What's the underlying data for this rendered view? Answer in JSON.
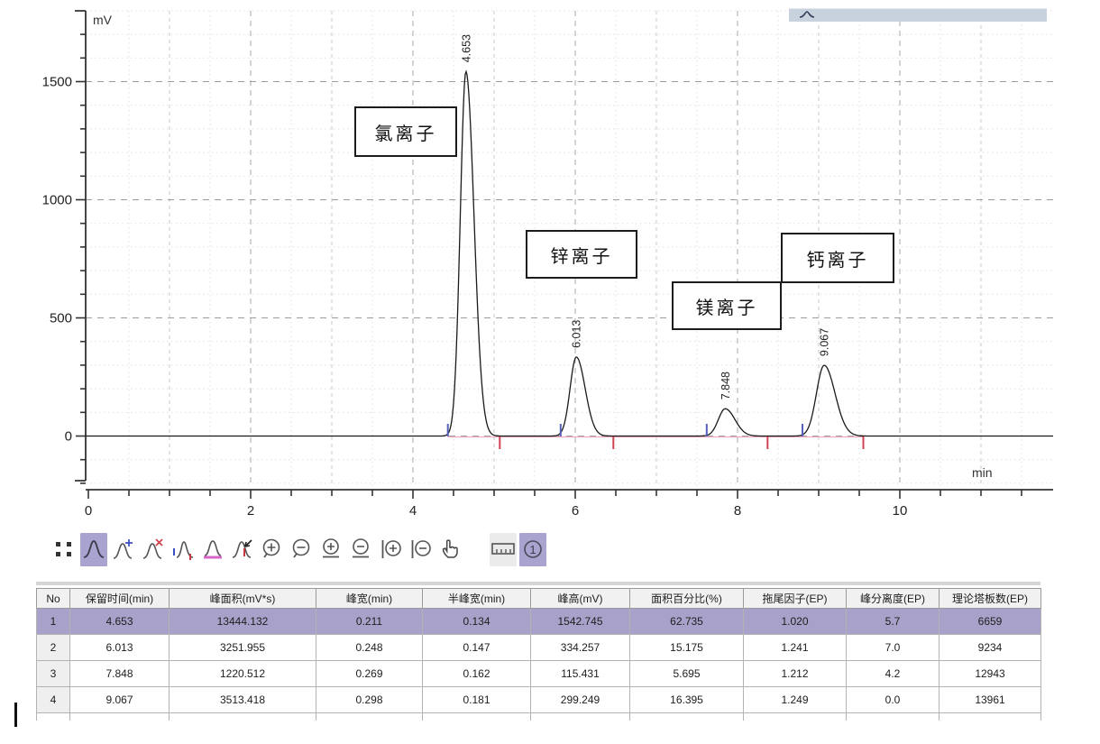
{
  "chart_data": {
    "type": "line",
    "title": "",
    "xlabel": "min",
    "ylabel": "mV",
    "xlim": [
      0,
      11.9
    ],
    "ylim": [
      -240,
      1800
    ],
    "x_ticks": [
      0,
      2,
      4,
      6,
      8,
      10
    ],
    "y_ticks": [
      0,
      500,
      1000,
      1500
    ],
    "grid": true,
    "legend_position": "top-right-cropped",
    "baseline_mV": 0,
    "peaks": [
      {
        "rt": 4.653,
        "rt_label": "4.653",
        "annotation": "氯离子",
        "height_mV": 1542.745,
        "width_min": 0.211,
        "half_width_min": 0.134
      },
      {
        "rt": 6.013,
        "rt_label": "6.013",
        "annotation": "锌离子",
        "height_mV": 334.257,
        "width_min": 0.248,
        "half_width_min": 0.147
      },
      {
        "rt": 7.848,
        "rt_label": "7.848",
        "annotation": "镁离子",
        "height_mV": 115.431,
        "width_min": 0.269,
        "half_width_min": 0.162
      },
      {
        "rt": 9.067,
        "rt_label": "9.067",
        "annotation": "钙离子",
        "height_mV": 299.249,
        "width_min": 0.298,
        "half_width_min": 0.181
      }
    ],
    "peak_start_markers_min": [
      4.43,
      5.82,
      7.62,
      8.8
    ],
    "peak_end_markers_min": [
      5.07,
      6.47,
      8.37,
      9.55
    ]
  },
  "toolbar": {
    "overlay_number": "1",
    "items": [
      "fit-view",
      "peak-tool-selected",
      "add-peak",
      "delete-peak",
      "peak-start-end",
      "baseline-tool",
      "peak-pick-arrow",
      "zoom-in",
      "zoom-out",
      "zoom-in-horizontal",
      "zoom-out-horizontal",
      "zoom-in-vertical",
      "zoom-out-vertical",
      "pan-hand",
      "ruler",
      "overlay-1"
    ]
  },
  "table": {
    "columns": [
      "No",
      "保留时间(min)",
      "峰面积(mV*s)",
      "峰宽(min)",
      "半峰宽(min)",
      "峰高(mV)",
      "面积百分比(%)",
      "拖尾因子(EP)",
      "峰分离度(EP)",
      "理论塔板数(EP)"
    ],
    "rows": [
      [
        "1",
        "4.653",
        "13444.132",
        "0.211",
        "0.134",
        "1542.745",
        "62.735",
        "1.020",
        "5.7",
        "6659"
      ],
      [
        "2",
        "6.013",
        "3251.955",
        "0.248",
        "0.147",
        "334.257",
        "15.175",
        "1.241",
        "7.0",
        "9234"
      ],
      [
        "3",
        "7.848",
        "1220.512",
        "0.269",
        "0.162",
        "115.431",
        "5.695",
        "1.212",
        "4.2",
        "12943"
      ],
      [
        "4",
        "9.067",
        "3513.418",
        "0.298",
        "0.181",
        "299.249",
        "16.395",
        "1.249",
        "0.0",
        "13961"
      ]
    ],
    "selected_row_index": 0
  },
  "colors": {
    "selection_purple": "#a8a2ca",
    "toolbar_selected": "#a9a4cf",
    "legend_bar": "#c8d2dd",
    "grid_minor": "#dfdfdf",
    "grid_major": "#9c9c9c",
    "baseline_pink": "#eeaabd",
    "peak_start_blue": "#5560bb",
    "peak_end_red": "#cf4455",
    "signal": "#1a1a1a"
  }
}
